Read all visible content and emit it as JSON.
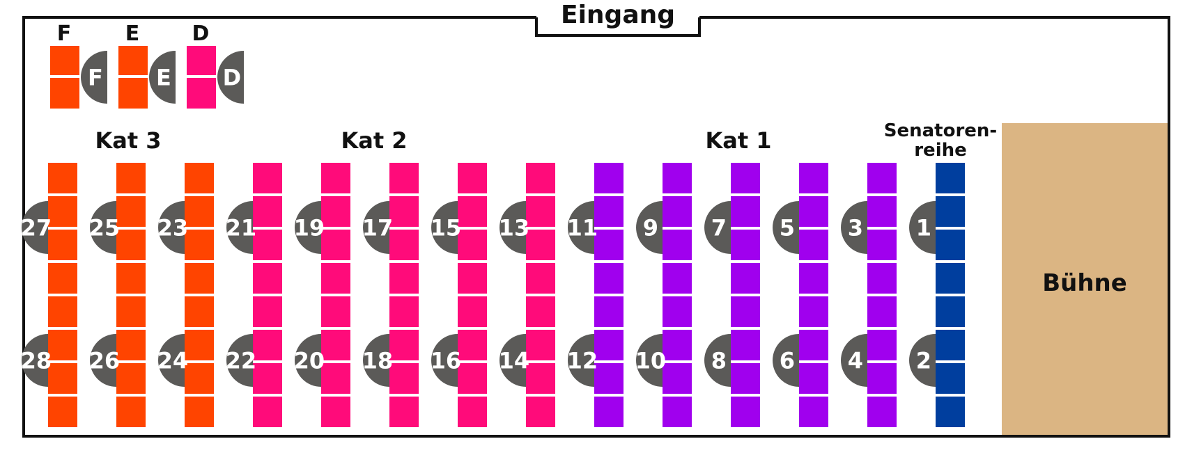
{
  "entrance": {
    "label": "Eingang"
  },
  "stage": {
    "label": "Bühne",
    "color": "#dbb583"
  },
  "colors": {
    "orange": "#ff4400",
    "pink": "#ff0b7a",
    "purple": "#a000ee",
    "blue": "#003e9e",
    "seat_marker": "#5b5a58",
    "wall": "#111111"
  },
  "categories": [
    {
      "label": "Kat 3"
    },
    {
      "label": "Kat 2"
    },
    {
      "label": "Kat 1"
    }
  ],
  "senators": {
    "line1": "Senatoren-",
    "line2": "reihe"
  },
  "top_rows": [
    {
      "header": "F",
      "marker": "F",
      "color": "orange"
    },
    {
      "header": "E",
      "marker": "E",
      "color": "orange"
    },
    {
      "header": "D",
      "marker": "D",
      "color": "pink"
    }
  ],
  "columns": [
    {
      "color": "orange",
      "upper": "27",
      "lower": "28"
    },
    {
      "color": "orange",
      "upper": "25",
      "lower": "26"
    },
    {
      "color": "orange",
      "upper": "23",
      "lower": "24"
    },
    {
      "color": "pink",
      "upper": "21",
      "lower": "22"
    },
    {
      "color": "pink",
      "upper": "19",
      "lower": "20"
    },
    {
      "color": "pink",
      "upper": "17",
      "lower": "18"
    },
    {
      "color": "pink",
      "upper": "15",
      "lower": "16"
    },
    {
      "color": "pink",
      "upper": "13",
      "lower": "14"
    },
    {
      "color": "purple",
      "upper": "11",
      "lower": "12"
    },
    {
      "color": "purple",
      "upper": "9",
      "lower": "10"
    },
    {
      "color": "purple",
      "upper": "7",
      "lower": "8"
    },
    {
      "color": "purple",
      "upper": "5",
      "lower": "6"
    },
    {
      "color": "purple",
      "upper": "3",
      "lower": "4"
    },
    {
      "color": "blue",
      "upper": "1",
      "lower": "2"
    }
  ]
}
